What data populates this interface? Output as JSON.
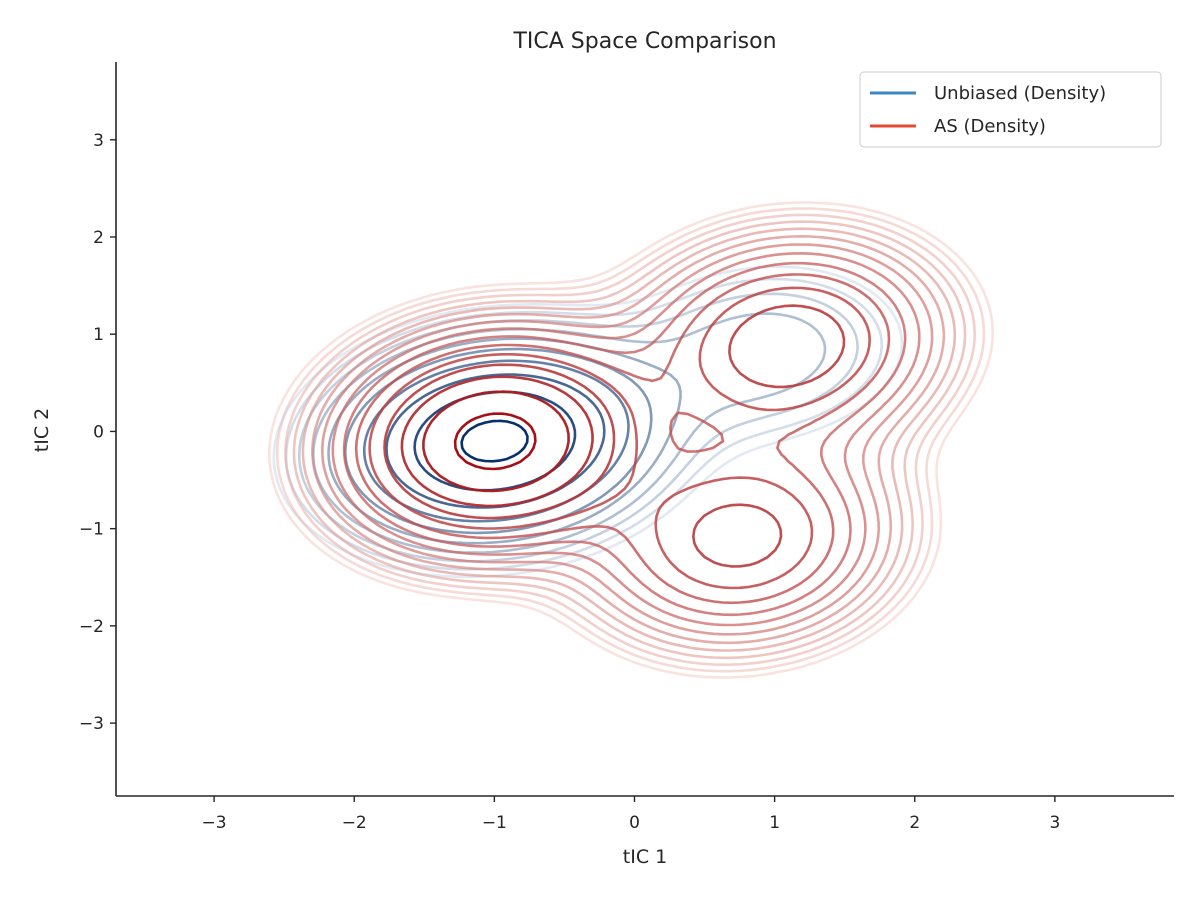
{
  "chart_data": {
    "type": "contour",
    "title": "TICA Space Comparison",
    "xlabel": "tIC 1",
    "ylabel": "tIC 2",
    "xlim": [
      -3.7,
      3.85
    ],
    "ylim": [
      -3.75,
      3.8
    ],
    "xticks": [
      -3,
      -2,
      -1,
      0,
      1,
      2,
      3
    ],
    "yticks": [
      -3,
      -2,
      -1,
      0,
      1,
      2,
      3
    ],
    "xtick_labels": [
      "−3",
      "−2",
      "−1",
      "0",
      "1",
      "2",
      "3"
    ],
    "ytick_labels": [
      "−3",
      "−2",
      "−1",
      "0",
      "1",
      "2",
      "3"
    ],
    "grid": false,
    "legend_position": "top-right",
    "series": [
      {
        "name": "Unbiased (Density)",
        "color": "#3a87c3",
        "colormap": [
          "#deebf7",
          "#08306b"
        ],
        "density_modes": [
          {
            "x": -1.0,
            "y": -0.1,
            "weight": 1.0
          },
          {
            "x": 0.9,
            "y": 0.8,
            "weight": 0.15
          }
        ],
        "extent": {
          "x": [
            -2.5,
            1.5
          ],
          "y": [
            -1.5,
            2.2
          ]
        },
        "levels": 10
      },
      {
        "name": "AS (Density)",
        "color": "#e34a33",
        "colormap": [
          "#fee0d2",
          "#a50f15"
        ],
        "density_modes": [
          {
            "x": -1.0,
            "y": -0.1,
            "weight": 1.0
          },
          {
            "x": 1.1,
            "y": 0.9,
            "weight": 0.55
          },
          {
            "x": 0.75,
            "y": -1.1,
            "weight": 0.5
          }
        ],
        "extent": {
          "x": [
            -2.8,
            2.8
          ],
          "y": [
            -2.7,
            2.5
          ]
        },
        "levels": 15
      }
    ]
  }
}
